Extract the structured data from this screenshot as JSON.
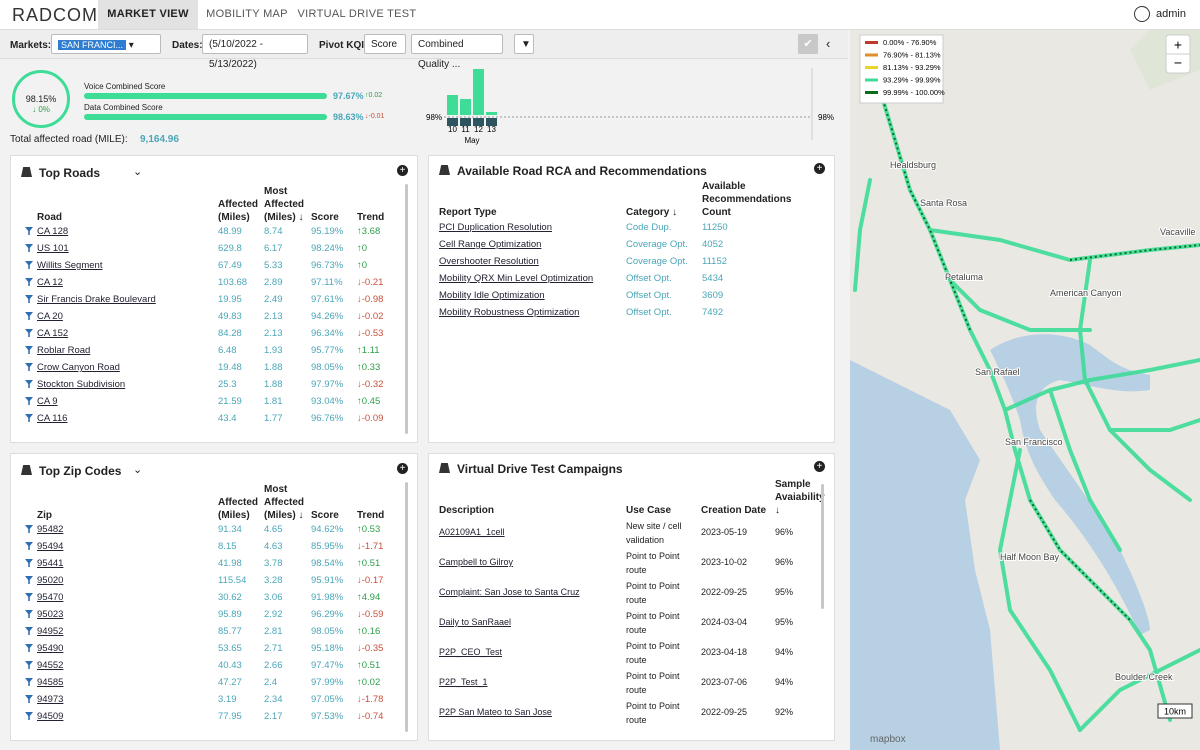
{
  "nav": {
    "logo": "RADCOM",
    "tabs": [
      "MARKET VIEW",
      "MOBILITY MAP",
      "VIRTUAL DRIVE TEST"
    ],
    "user": "admin"
  },
  "filters": {
    "markets_label": "Markets:",
    "market": "SAN FRANCI...",
    "dates_label": "Dates:",
    "dates": "(5/10/2022 - 5/13/2022)",
    "pivot_label": "Pivot KQI:",
    "pivot": "Score",
    "kqi": "Combined Quality ..."
  },
  "summary": {
    "overall": "98.15%",
    "overall_change": "↓ 0%",
    "voice_label": "Voice Combined Score",
    "voice": "97.67%",
    "voice_change": "↑0.02",
    "data_label": "Data Combined Score",
    "data": "98.63%",
    "data_change": "↓-0.01",
    "total_label": "Total affected road (MILE):",
    "total": "9,164.96"
  },
  "chart_data": {
    "type": "bar",
    "categories": [
      "10",
      "11",
      "12",
      "13"
    ],
    "values": [
      20,
      16,
      46,
      3
    ],
    "ylim": [
      0,
      50
    ],
    "month": "May",
    "reference_label": "98%",
    "color": "#3ddc97"
  },
  "top_roads": {
    "title": "Top Roads",
    "columns": [
      "Road",
      "Affected (Miles)",
      "Most Affected (Miles) ↓",
      "Score",
      "Trend"
    ],
    "rows": [
      [
        "CA 128",
        "48.99",
        "8.74",
        "95.19%",
        "↑3.68"
      ],
      [
        "US 101",
        "629.8",
        "6.17",
        "98.24%",
        "↑0"
      ],
      [
        "Willits Segment",
        "67.49",
        "5.33",
        "96.73%",
        "↑0"
      ],
      [
        "CA 12",
        "103.68",
        "2.89",
        "97.11%",
        "↓-0.21"
      ],
      [
        "Sir Francis Drake Boulevard",
        "19.95",
        "2.49",
        "97.61%",
        "↓-0.98"
      ],
      [
        "CA 20",
        "49.83",
        "2.13",
        "94.26%",
        "↓-0.02"
      ],
      [
        "CA 152",
        "84.28",
        "2.13",
        "96.34%",
        "↓-0.53"
      ],
      [
        "Roblar Road",
        "6.48",
        "1.93",
        "95.77%",
        "↑1.11"
      ],
      [
        "Crow Canyon Road",
        "19.48",
        "1.88",
        "98.05%",
        "↑0.33"
      ],
      [
        "Stockton Subdivision",
        "25.3",
        "1.88",
        "97.97%",
        "↓-0.32"
      ],
      [
        "CA 9",
        "21.59",
        "1.81",
        "93.04%",
        "↑0.45"
      ],
      [
        "CA 116",
        "43.4",
        "1.77",
        "96.76%",
        "↓-0.09"
      ]
    ]
  },
  "top_zips": {
    "title": "Top Zip Codes",
    "columns": [
      "Zip",
      "Affected (Miles)",
      "Most Affected (Miles) ↓",
      "Score",
      "Trend"
    ],
    "rows": [
      [
        "95482",
        "91.34",
        "4.65",
        "94.62%",
        "↑0.53"
      ],
      [
        "95494",
        "8.15",
        "4.63",
        "85.95%",
        "↓-1.71"
      ],
      [
        "95441",
        "41.98",
        "3.78",
        "98.54%",
        "↑0.51"
      ],
      [
        "95020",
        "115.54",
        "3.28",
        "95.91%",
        "↓-0.17"
      ],
      [
        "95470",
        "30.62",
        "3.06",
        "91.98%",
        "↑4.94"
      ],
      [
        "95023",
        "95.89",
        "2.92",
        "96.29%",
        "↓-0.59"
      ],
      [
        "94952",
        "85.77",
        "2.81",
        "98.05%",
        "↑0.16"
      ],
      [
        "95490",
        "53.65",
        "2.71",
        "95.18%",
        "↓-0.35"
      ],
      [
        "94552",
        "40.43",
        "2.66",
        "97.47%",
        "↑0.51"
      ],
      [
        "94585",
        "47.27",
        "2.4",
        "97.99%",
        "↑0.02"
      ],
      [
        "94973",
        "3.19",
        "2.34",
        "97.05%",
        "↓-1.78"
      ],
      [
        "94509",
        "77.95",
        "2.17",
        "97.53%",
        "↓-0.74"
      ]
    ]
  },
  "rca": {
    "title": "Available Road RCA and Recommendations",
    "columns": [
      "Report Type",
      "Category ↓",
      "Available Recommendations Count"
    ],
    "rows": [
      [
        "PCI Duplication Resolution",
        "Code Dup.",
        "11250"
      ],
      [
        "Cell Range Optimization",
        "Coverage Opt.",
        "4052"
      ],
      [
        "Overshooter Resolution",
        "Coverage Opt.",
        "11152"
      ],
      [
        "Mobility QRX Min Level Optimization",
        "Offset Opt.",
        "5434"
      ],
      [
        "Mobility Idle Optimization",
        "Offset Opt.",
        "3609"
      ],
      [
        "Mobility Robustness Optimization",
        "Offset Opt.",
        "7492"
      ]
    ]
  },
  "vdt": {
    "title": "Virtual Drive Test Campaigns",
    "columns": [
      "Description",
      "Use Case",
      "Creation Date",
      "Sample Avaiability ↓"
    ],
    "rows": [
      [
        "A02109A1_1cell",
        "New site / cell validation",
        "2023-05-19",
        "96%"
      ],
      [
        "Campbell to Gilroy",
        "Point to Point route",
        "2023-10-02",
        "96%"
      ],
      [
        "Complaint: San Jose to Santa Cruz",
        "Point to Point route",
        "2022-09-25",
        "95%"
      ],
      [
        "Daily to SanRaael",
        "Point to Point route",
        "2024-03-04",
        "95%"
      ],
      [
        "P2P_CEO_Test",
        "Point to Point route",
        "2023-04-18",
        "94%"
      ],
      [
        "P2P_Test_1",
        "Point to Point route",
        "2023-07-06",
        "94%"
      ],
      [
        "P2P San Mateo to San Jose",
        "Point to Point route",
        "2022-09-25",
        "92%"
      ]
    ]
  },
  "map": {
    "legend": [
      "0.00% - 76.90%",
      "76.90% - 81.13%",
      "81.13% - 93.29%",
      "93.29% - 99.99%",
      "99.99% - 100.00%"
    ],
    "legend_colors": [
      "#c0392b",
      "#e0902a",
      "#e8d52a",
      "#3ddc97",
      "#0a6b1a"
    ],
    "places": [
      {
        "name": "Healdsburg",
        "x": 40,
        "y": 138
      },
      {
        "name": "Santa Rosa",
        "x": 70,
        "y": 176
      },
      {
        "name": "Petaluma",
        "x": 95,
        "y": 250
      },
      {
        "name": "Vacaville",
        "x": 310,
        "y": 205
      },
      {
        "name": "American Canyon",
        "x": 200,
        "y": 266
      },
      {
        "name": "San Rafael",
        "x": 125,
        "y": 345
      },
      {
        "name": "San Francisco",
        "x": 155,
        "y": 415
      },
      {
        "name": "Half Moon Bay",
        "x": 150,
        "y": 530
      },
      {
        "name": "Boulder Creek",
        "x": 265,
        "y": 650
      }
    ],
    "scale": "10km",
    "attribution": "mapbox",
    "zoom_in": "+",
    "zoom_out": "−"
  }
}
